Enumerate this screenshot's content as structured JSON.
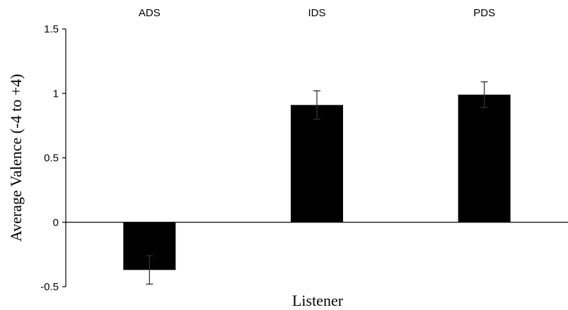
{
  "chart_data": {
    "type": "bar",
    "categories": [
      "ADS",
      "IDS",
      "PDS"
    ],
    "values": [
      -0.37,
      0.91,
      0.99
    ],
    "error": [
      0.11,
      0.11,
      0.1
    ],
    "title": "",
    "xlabel": "Listener",
    "ylabel": "Average Valence  (-4 to +4)",
    "ylim": [
      -0.5,
      1.5
    ],
    "yticks": [
      -0.5,
      0,
      0.5,
      1,
      1.5
    ],
    "ytick_labels": [
      "-0.5",
      "0",
      "0.5",
      "1",
      "1.5"
    ],
    "category_label_position": "top",
    "grid": false,
    "legend": "none",
    "bar_color": "#000000"
  }
}
